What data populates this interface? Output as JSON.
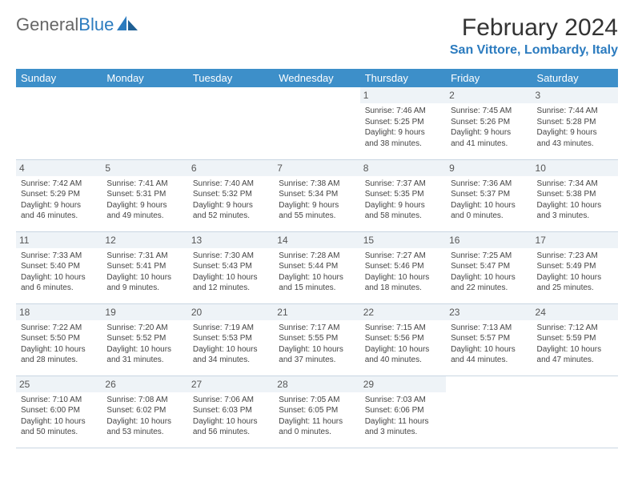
{
  "logo": {
    "text1": "General",
    "text2": "Blue"
  },
  "title": "February 2024",
  "location": "San Vittore, Lombardy, Italy",
  "colors": {
    "header_bg": "#3d8fc9",
    "accent": "#2b7bbf",
    "daynum_bg": "#eef3f7",
    "border": "#c9d6e2",
    "text": "#444444",
    "background": "#ffffff"
  },
  "typography": {
    "body_font": "Arial",
    "title_size_pt": 22,
    "location_size_pt": 12,
    "header_size_pt": 10,
    "cell_size_pt": 7.5
  },
  "layout": {
    "columns": 7,
    "rows": 5,
    "first_day_column": 4
  },
  "weekdays": [
    "Sunday",
    "Monday",
    "Tuesday",
    "Wednesday",
    "Thursday",
    "Friday",
    "Saturday"
  ],
  "weeks": [
    [
      null,
      null,
      null,
      null,
      {
        "n": "1",
        "sr": "Sunrise: 7:46 AM",
        "ss": "Sunset: 5:25 PM",
        "d1": "Daylight: 9 hours",
        "d2": "and 38 minutes."
      },
      {
        "n": "2",
        "sr": "Sunrise: 7:45 AM",
        "ss": "Sunset: 5:26 PM",
        "d1": "Daylight: 9 hours",
        "d2": "and 41 minutes."
      },
      {
        "n": "3",
        "sr": "Sunrise: 7:44 AM",
        "ss": "Sunset: 5:28 PM",
        "d1": "Daylight: 9 hours",
        "d2": "and 43 minutes."
      }
    ],
    [
      {
        "n": "4",
        "sr": "Sunrise: 7:42 AM",
        "ss": "Sunset: 5:29 PM",
        "d1": "Daylight: 9 hours",
        "d2": "and 46 minutes."
      },
      {
        "n": "5",
        "sr": "Sunrise: 7:41 AM",
        "ss": "Sunset: 5:31 PM",
        "d1": "Daylight: 9 hours",
        "d2": "and 49 minutes."
      },
      {
        "n": "6",
        "sr": "Sunrise: 7:40 AM",
        "ss": "Sunset: 5:32 PM",
        "d1": "Daylight: 9 hours",
        "d2": "and 52 minutes."
      },
      {
        "n": "7",
        "sr": "Sunrise: 7:38 AM",
        "ss": "Sunset: 5:34 PM",
        "d1": "Daylight: 9 hours",
        "d2": "and 55 minutes."
      },
      {
        "n": "8",
        "sr": "Sunrise: 7:37 AM",
        "ss": "Sunset: 5:35 PM",
        "d1": "Daylight: 9 hours",
        "d2": "and 58 minutes."
      },
      {
        "n": "9",
        "sr": "Sunrise: 7:36 AM",
        "ss": "Sunset: 5:37 PM",
        "d1": "Daylight: 10 hours",
        "d2": "and 0 minutes."
      },
      {
        "n": "10",
        "sr": "Sunrise: 7:34 AM",
        "ss": "Sunset: 5:38 PM",
        "d1": "Daylight: 10 hours",
        "d2": "and 3 minutes."
      }
    ],
    [
      {
        "n": "11",
        "sr": "Sunrise: 7:33 AM",
        "ss": "Sunset: 5:40 PM",
        "d1": "Daylight: 10 hours",
        "d2": "and 6 minutes."
      },
      {
        "n": "12",
        "sr": "Sunrise: 7:31 AM",
        "ss": "Sunset: 5:41 PM",
        "d1": "Daylight: 10 hours",
        "d2": "and 9 minutes."
      },
      {
        "n": "13",
        "sr": "Sunrise: 7:30 AM",
        "ss": "Sunset: 5:43 PM",
        "d1": "Daylight: 10 hours",
        "d2": "and 12 minutes."
      },
      {
        "n": "14",
        "sr": "Sunrise: 7:28 AM",
        "ss": "Sunset: 5:44 PM",
        "d1": "Daylight: 10 hours",
        "d2": "and 15 minutes."
      },
      {
        "n": "15",
        "sr": "Sunrise: 7:27 AM",
        "ss": "Sunset: 5:46 PM",
        "d1": "Daylight: 10 hours",
        "d2": "and 18 minutes."
      },
      {
        "n": "16",
        "sr": "Sunrise: 7:25 AM",
        "ss": "Sunset: 5:47 PM",
        "d1": "Daylight: 10 hours",
        "d2": "and 22 minutes."
      },
      {
        "n": "17",
        "sr": "Sunrise: 7:23 AM",
        "ss": "Sunset: 5:49 PM",
        "d1": "Daylight: 10 hours",
        "d2": "and 25 minutes."
      }
    ],
    [
      {
        "n": "18",
        "sr": "Sunrise: 7:22 AM",
        "ss": "Sunset: 5:50 PM",
        "d1": "Daylight: 10 hours",
        "d2": "and 28 minutes."
      },
      {
        "n": "19",
        "sr": "Sunrise: 7:20 AM",
        "ss": "Sunset: 5:52 PM",
        "d1": "Daylight: 10 hours",
        "d2": "and 31 minutes."
      },
      {
        "n": "20",
        "sr": "Sunrise: 7:19 AM",
        "ss": "Sunset: 5:53 PM",
        "d1": "Daylight: 10 hours",
        "d2": "and 34 minutes."
      },
      {
        "n": "21",
        "sr": "Sunrise: 7:17 AM",
        "ss": "Sunset: 5:55 PM",
        "d1": "Daylight: 10 hours",
        "d2": "and 37 minutes."
      },
      {
        "n": "22",
        "sr": "Sunrise: 7:15 AM",
        "ss": "Sunset: 5:56 PM",
        "d1": "Daylight: 10 hours",
        "d2": "and 40 minutes."
      },
      {
        "n": "23",
        "sr": "Sunrise: 7:13 AM",
        "ss": "Sunset: 5:57 PM",
        "d1": "Daylight: 10 hours",
        "d2": "and 44 minutes."
      },
      {
        "n": "24",
        "sr": "Sunrise: 7:12 AM",
        "ss": "Sunset: 5:59 PM",
        "d1": "Daylight: 10 hours",
        "d2": "and 47 minutes."
      }
    ],
    [
      {
        "n": "25",
        "sr": "Sunrise: 7:10 AM",
        "ss": "Sunset: 6:00 PM",
        "d1": "Daylight: 10 hours",
        "d2": "and 50 minutes."
      },
      {
        "n": "26",
        "sr": "Sunrise: 7:08 AM",
        "ss": "Sunset: 6:02 PM",
        "d1": "Daylight: 10 hours",
        "d2": "and 53 minutes."
      },
      {
        "n": "27",
        "sr": "Sunrise: 7:06 AM",
        "ss": "Sunset: 6:03 PM",
        "d1": "Daylight: 10 hours",
        "d2": "and 56 minutes."
      },
      {
        "n": "28",
        "sr": "Sunrise: 7:05 AM",
        "ss": "Sunset: 6:05 PM",
        "d1": "Daylight: 11 hours",
        "d2": "and 0 minutes."
      },
      {
        "n": "29",
        "sr": "Sunrise: 7:03 AM",
        "ss": "Sunset: 6:06 PM",
        "d1": "Daylight: 11 hours",
        "d2": "and 3 minutes."
      },
      null,
      null
    ]
  ]
}
